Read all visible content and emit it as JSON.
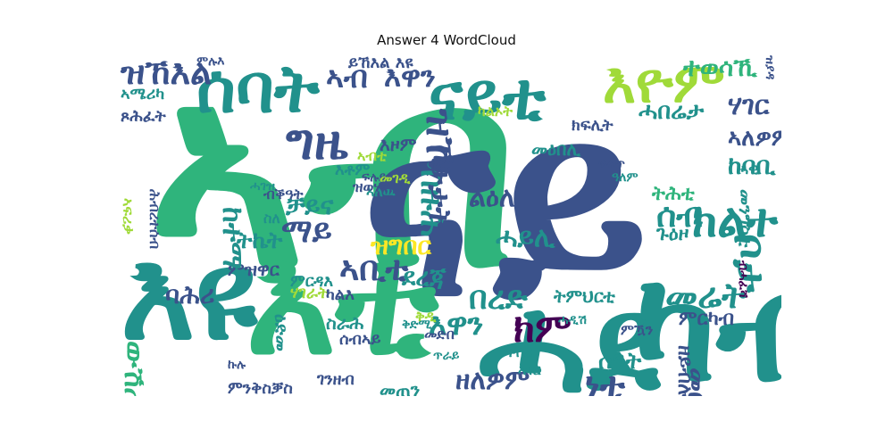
{
  "title": "Answer 4 WordCloud",
  "palette": {
    "c1": "#440154",
    "c2": "#3b528b",
    "c3": "#21918c",
    "c4": "#2fb47c",
    "c5": "#a0da39",
    "c6": "#fde725"
  },
  "words": [
    {
      "text": "ኣብ",
      "color": "#2fb47c"
    },
    {
      "text": "ናይ",
      "color": "#3b528b"
    },
    {
      "text": "እዩ",
      "color": "#21918c"
    },
    {
      "text": "እቲ",
      "color": "#2fb47c"
    },
    {
      "text": "ሓደ",
      "color": "#21918c"
    },
    {
      "text": "ካብ",
      "color": "#21918c"
    },
    {
      "text": "ሰባት",
      "color": "#21918c"
    },
    {
      "text": "ዝኸእል",
      "color": "#3b528b"
    },
    {
      "text": "ኣብ",
      "color": "#3b528b"
    },
    {
      "text": "እዋን",
      "color": "#3b528b"
    },
    {
      "text": "ናይቲ",
      "color": "#21918c"
    },
    {
      "text": "እዮም",
      "color": "#a0da39"
    },
    {
      "text": "ተወሳኺ",
      "color": "#2fb47c"
    },
    {
      "text": "ሃገር",
      "color": "#3b528b"
    },
    {
      "text": "ሓበሬታ",
      "color": "#21918c"
    },
    {
      "text": "ዝኾነ",
      "color": "#3b528b"
    },
    {
      "text": "ግዜ",
      "color": "#3b528b"
    },
    {
      "text": "ቻይና",
      "color": "#21918c"
    },
    {
      "text": "መንግስቲ",
      "color": "#21918c"
    },
    {
      "text": "ማይ",
      "color": "#3b528b"
    },
    {
      "text": "ዝግበር",
      "color": "#fde725"
    },
    {
      "text": "ሓይሊ",
      "color": "#21918c"
    },
    {
      "text": "ልዕሊ",
      "color": "#3b528b"
    },
    {
      "text": "ሰብ",
      "color": "#21918c"
    },
    {
      "text": "ክልተ",
      "color": "#21918c"
    },
    {
      "text": "ቦታ",
      "color": "#21918c"
    },
    {
      "text": "ከባቢ",
      "color": "#21918c"
    },
    {
      "text": "ኣለዎም",
      "color": "#3b528b"
    },
    {
      "text": "ኣቢቲ",
      "color": "#3b528b"
    },
    {
      "text": "ብዙሕ",
      "color": "#21918c"
    },
    {
      "text": "መሬት",
      "color": "#21918c"
    },
    {
      "text": "በረድ",
      "color": "#21918c"
    },
    {
      "text": "ክም",
      "color": "#440154"
    },
    {
      "text": "ደረጃ",
      "color": "#21918c"
    },
    {
      "text": "ባሕሪ",
      "color": "#3b528b"
    },
    {
      "text": "ዘለዎም",
      "color": "#3b528b"
    },
    {
      "text": "ሰዓት",
      "color": "#21918c"
    },
    {
      "text": "ነቲ",
      "color": "#3b528b"
    },
    {
      "text": "እዋን",
      "color": "#21918c"
    },
    {
      "text": "ትሕቲ",
      "color": "#2fb47c"
    },
    {
      "text": "ጉዕዞ",
      "color": "#21918c"
    },
    {
      "text": "ምርካብ",
      "color": "#3b528b"
    },
    {
      "text": "ክፍሊት",
      "color": "#3b528b"
    },
    {
      "text": "መዕበሊ",
      "color": "#21918c"
    },
    {
      "text": "ውሽጢ",
      "color": "#2fb47c"
    },
    {
      "text": "ምንቅስቓስ",
      "color": "#3b528b"
    },
    {
      "text": "መጠን",
      "color": "#21918c"
    },
    {
      "text": "ትኬት",
      "color": "#21918c"
    },
    {
      "text": "ሃገራት",
      "color": "#a0da39"
    },
    {
      "text": "ምዝዋር",
      "color": "#3b528b"
    },
    {
      "text": "ቦታታት",
      "color": "#3b528b"
    },
    {
      "text": "መርከብ",
      "color": "#3b528b"
    },
    {
      "text": "ኣሜሪካ",
      "color": "#21918c"
    },
    {
      "text": "ጾሕፈት",
      "color": "#3b528b"
    },
    {
      "text": "ዓለም",
      "color": "#21918c"
    },
    {
      "text": "ምሉእ",
      "color": "#3b528b"
    },
    {
      "text": "ይኸእል እዩ",
      "color": "#3b528b"
    },
    {
      "text": "ኣለዉ",
      "color": "#21918c"
    },
    {
      "text": "መድበ",
      "color": "#3b528b"
    },
    {
      "text": "ሓዊ",
      "color": "#21918c"
    },
    {
      "text": "ካልእ",
      "color": "#3b528b"
    },
    {
      "text": "ኣገር",
      "color": "#21918c"
    },
    {
      "text": "ምዃን",
      "color": "#3b528b"
    },
    {
      "text": "ግብሪ",
      "color": "#21918c"
    },
    {
      "text": "ቅዲ",
      "color": "#a0da39"
    },
    {
      "text": "ቅድሚ",
      "color": "#21918c"
    },
    {
      "text": "ፍሉይ",
      "color": "#3b528b"
    },
    {
      "text": "ምርዳእ",
      "color": "#21918c"
    },
    {
      "text": "ብሓፈሻ",
      "color": "#440154"
    },
    {
      "text": "ዘይብሎም",
      "color": "#3b528b"
    },
    {
      "text": "ስለ",
      "color": "#21918c"
    },
    {
      "text": "ካልኦት",
      "color": "#a0da39"
    },
    {
      "text": "ዝያዳ",
      "color": "#3b528b"
    },
    {
      "text": "ጥራይ",
      "color": "#21918c"
    },
    {
      "text": "ኩሉ",
      "color": "#3b528b"
    },
    {
      "text": "ሓዲሽ",
      "color": "#21918c"
    },
    {
      "text": "ብቕዓት",
      "color": "#3b528b"
    },
    {
      "text": "ትምህርቲ",
      "color": "#21918c"
    },
    {
      "text": "ኣፍሪቃ",
      "color": "#a0da39"
    },
    {
      "text": "ከተማ",
      "color": "#21918c"
    },
    {
      "text": "ሓገዝ",
      "color": "#21918c"
    },
    {
      "text": "ፍሉጥ",
      "color": "#3b528b"
    },
    {
      "text": "ዝወሃብ",
      "color": "#3b528b"
    },
    {
      "text": "ገንዘብ",
      "color": "#3b528b"
    },
    {
      "text": "እዞም",
      "color": "#3b528b"
    },
    {
      "text": "መገዲ",
      "color": "#a0da39"
    },
    {
      "text": "ዕድመ",
      "color": "#21918c"
    },
    {
      "text": "ስራሕ",
      "color": "#21918c"
    },
    {
      "text": "ሕብረተሰብ",
      "color": "#3b528b"
    },
    {
      "text": "እቶም",
      "color": "#21918c"
    },
    {
      "text": "ኣብቲ",
      "color": "#a0da39"
    },
    {
      "text": "ሰብኣይ",
      "color": "#3b528b"
    }
  ]
}
